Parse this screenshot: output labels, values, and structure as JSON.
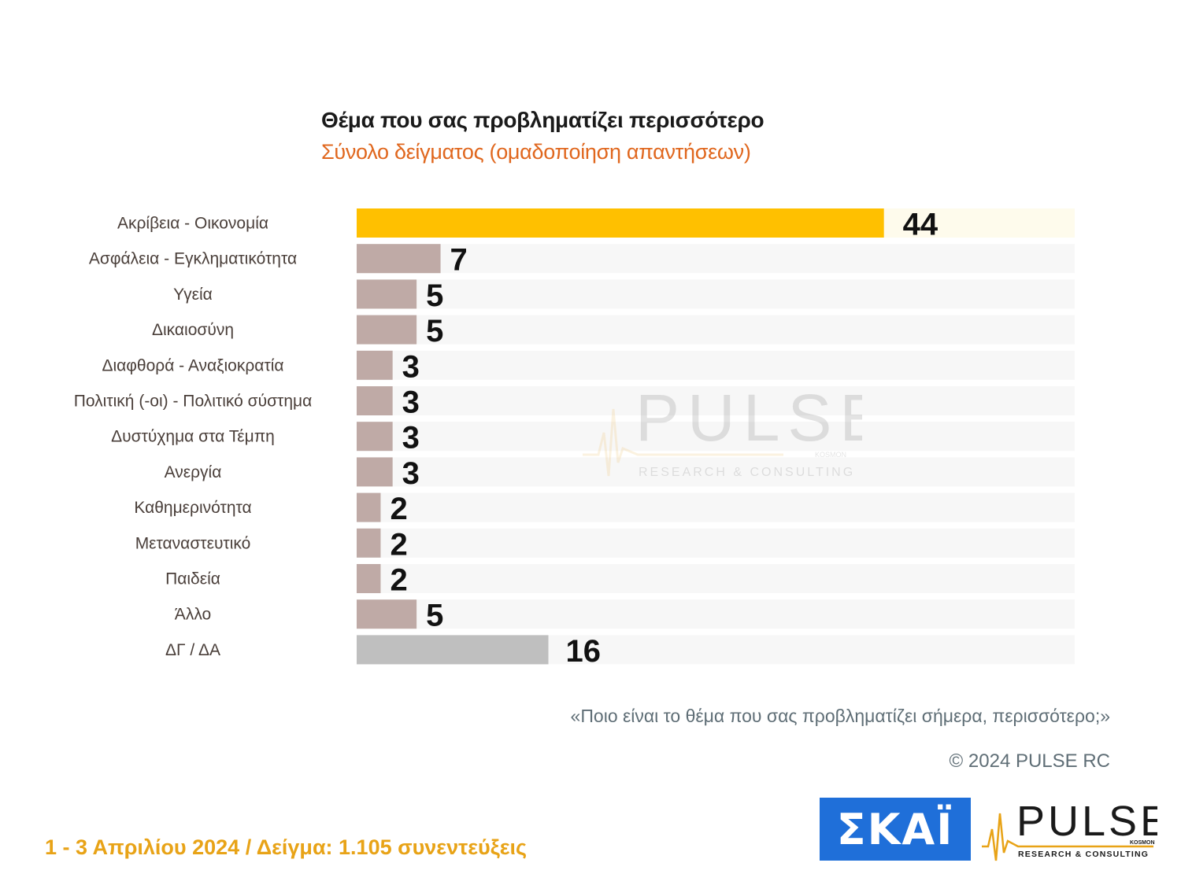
{
  "header": {
    "title": "Θέμα που σας προβληματίζει περισσότερο",
    "subtitle": "Σύνολο δείγματος (ομαδοποίηση απαντήσεων)"
  },
  "chart_data": {
    "type": "bar",
    "orientation": "horizontal",
    "title": "Θέμα που σας προβληματίζει περισσότερο",
    "subtitle": "Σύνολο δείγματος (ομαδοποίηση απαντήσεων)",
    "categories": [
      "Ακρίβεια - Οικονομία",
      "Ασφάλεια - Εγκληματικότητα",
      "Υγεία",
      "Δικαιοσύνη",
      "Διαφθορά  - Αναξιοκρατία",
      "Πολιτική (-οι) - Πολιτικό σύστημα",
      "Δυστύχημα στα Τέμπη",
      "Ανεργία",
      "Καθημερινότητα",
      "Μεταναστευτικό",
      "Παιδεία",
      "Άλλο",
      "ΔΓ / ΔΑ"
    ],
    "values": [
      44,
      7,
      5,
      5,
      3,
      3,
      3,
      3,
      2,
      2,
      2,
      5,
      16
    ],
    "xlim": [
      0,
      60
    ],
    "grid": false,
    "colors": {
      "highlight": "#ffc000",
      "default": "#bfaaa6",
      "no_answer": "#bfbfbf",
      "track": "#f7f7f7",
      "highlight_track": "#fefbec"
    }
  },
  "watermark": {
    "brand": "PULSE",
    "tagline": "RESEARCH & CONSULTING",
    "sub": "KOSMON"
  },
  "question": "«Ποιο είναι το θέμα που σας προβληματίζει σήμερα, περισσότερο;»",
  "copyright": "© 2024 PULSE RC",
  "footer": "1 - 3  Απριλίου 2024  /  Δείγμα:  1.105 συνεντεύξεις",
  "logos": {
    "skai": "ΣΚΑΪ",
    "pulse": "PULSE",
    "pulse_tagline": "RESEARCH & CONSULTING",
    "pulse_sub": "KOSMON"
  }
}
